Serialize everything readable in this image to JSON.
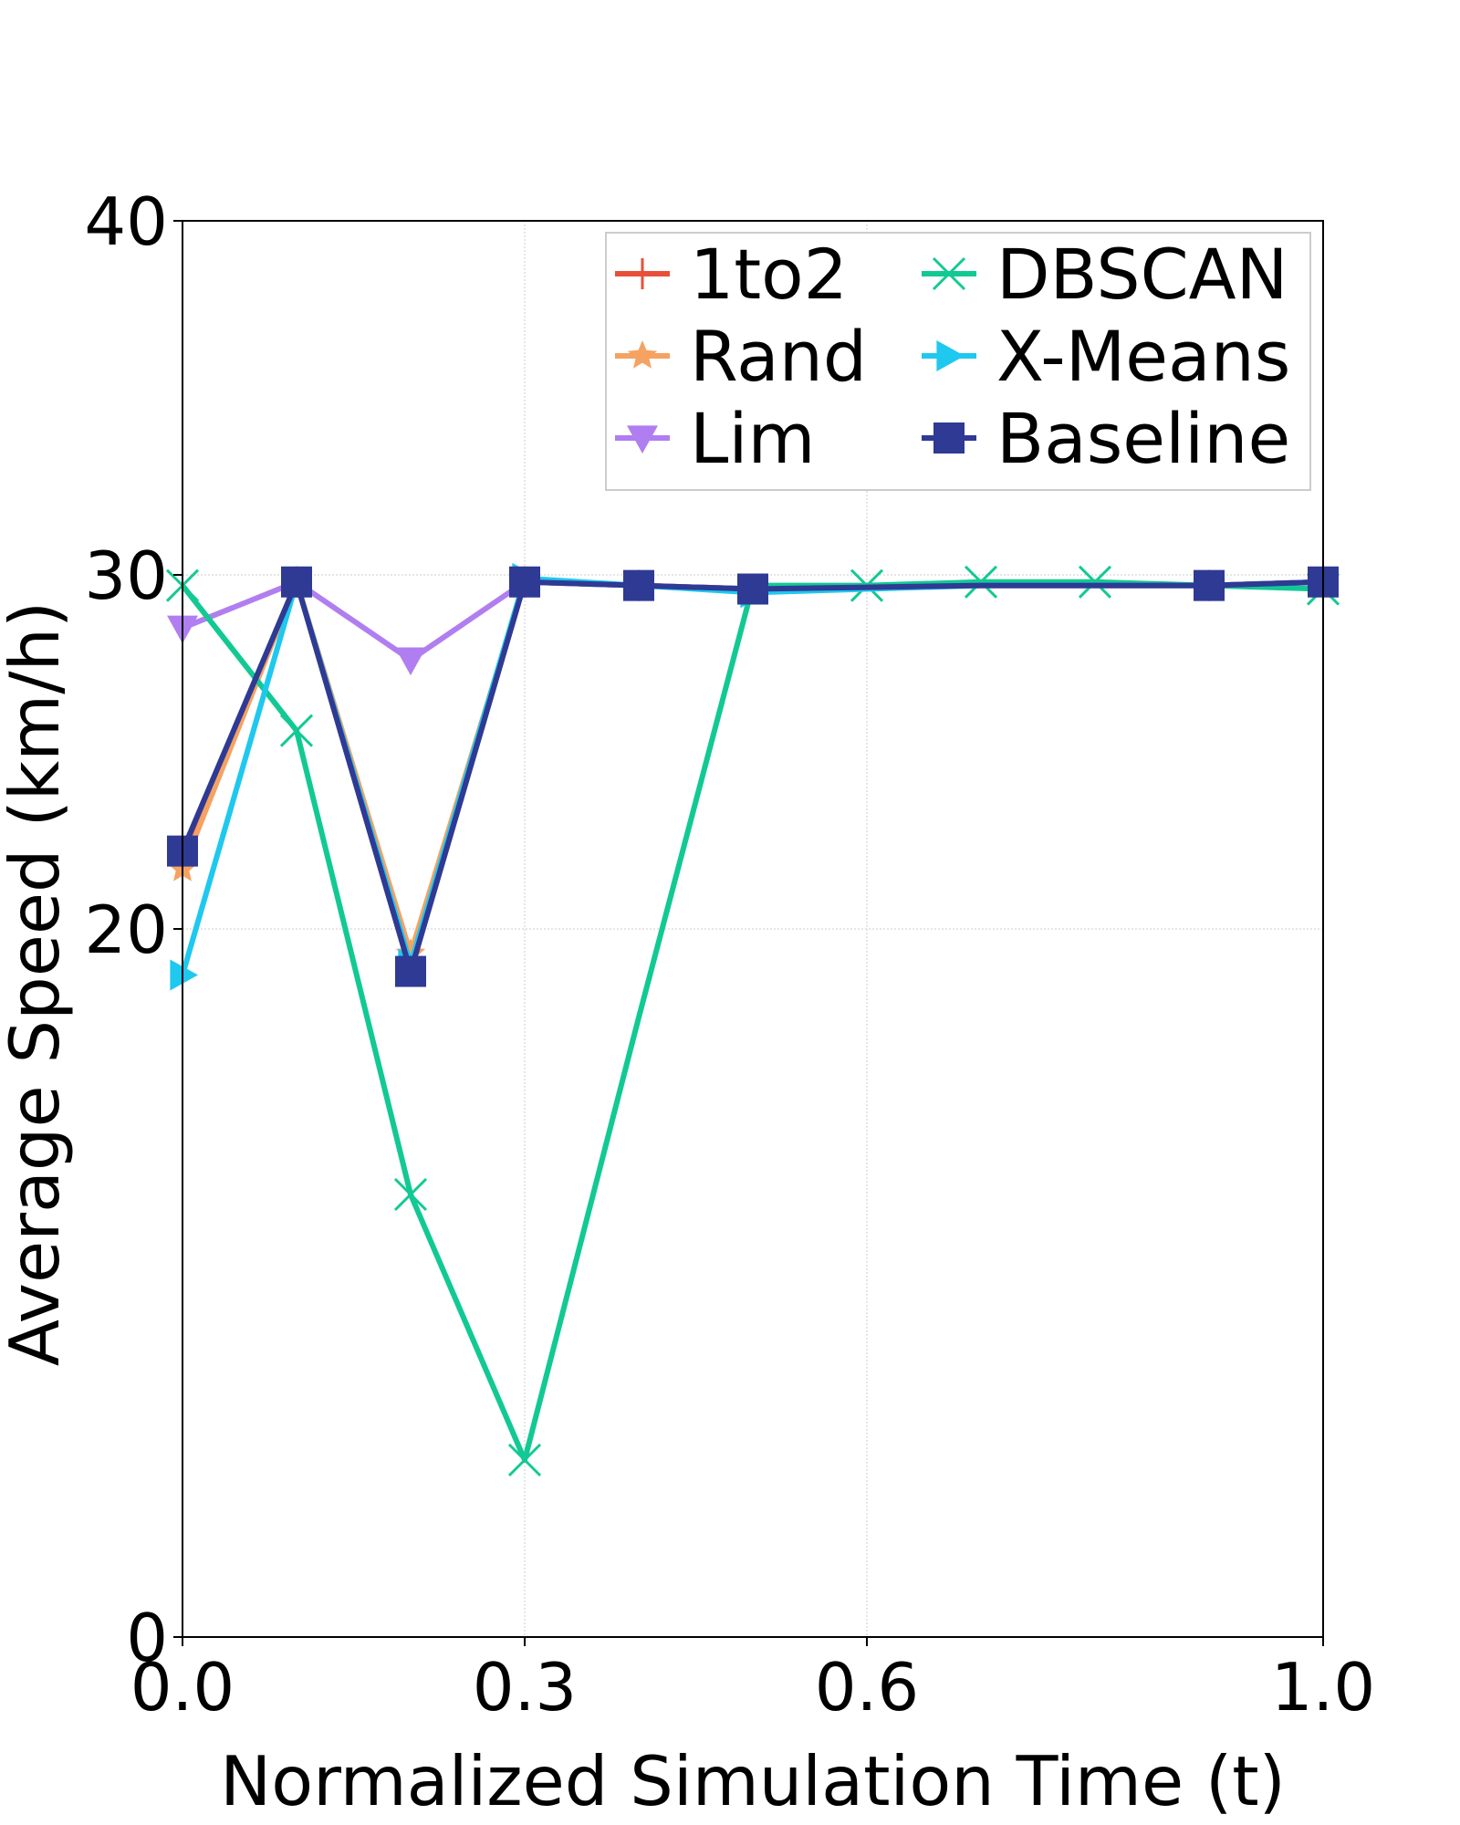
{
  "chart_data": {
    "type": "line",
    "title": "",
    "xlabel": "Normalized Simulation Time (t)",
    "ylabel": "Average Speed (km/h)",
    "xlim": [
      0.0,
      1.0
    ],
    "ylim": [
      0,
      40
    ],
    "x_ticks": [
      0.0,
      0.3,
      0.6,
      1.0
    ],
    "x_tick_labels": [
      "0.0",
      "0.3",
      "0.6",
      "1.0"
    ],
    "y_ticks": [
      0,
      20,
      30,
      40
    ],
    "y_tick_labels": [
      "0",
      "20",
      "30",
      "40"
    ],
    "grid": true,
    "legend_position": "top-right",
    "x": [
      0.0,
      0.1,
      0.2,
      0.3,
      0.4,
      0.5,
      0.6,
      0.7,
      0.8,
      0.9,
      1.0
    ],
    "series": [
      {
        "name": "1to2",
        "color": "#e8503a",
        "marker": "plus",
        "values": [
          22.0,
          29.8,
          19.0,
          29.8,
          29.7,
          29.6,
          29.65,
          29.7,
          29.7,
          29.7,
          29.8
        ]
      },
      {
        "name": "Rand",
        "color": "#f5a262",
        "marker": "star",
        "values": [
          21.7,
          29.8,
          19.3,
          29.8,
          29.7,
          29.6,
          29.65,
          29.7,
          29.7,
          29.7,
          29.8
        ]
      },
      {
        "name": "Lim",
        "color": "#b07ef0",
        "marker": "triangle-down",
        "values": [
          28.5,
          29.8,
          27.6,
          29.8,
          29.7,
          29.6,
          29.65,
          29.7,
          29.7,
          29.7,
          29.8
        ]
      },
      {
        "name": "DBSCAN",
        "color": "#12c994",
        "marker": "x",
        "values": [
          29.7,
          25.6,
          12.5,
          5.0,
          17.5,
          29.7,
          29.7,
          29.8,
          29.8,
          29.7,
          29.6
        ]
      },
      {
        "name": "X-Means",
        "color": "#1fc8ee",
        "marker": "triangle-right",
        "values": [
          18.7,
          29.8,
          19.0,
          29.9,
          29.7,
          29.5,
          29.6,
          29.7,
          29.7,
          29.7,
          29.8
        ]
      },
      {
        "name": "Baseline",
        "color": "#2e3a94",
        "marker": "square",
        "values": [
          22.2,
          29.8,
          18.8,
          29.8,
          29.7,
          29.6,
          29.65,
          29.7,
          29.7,
          29.7,
          29.8
        ]
      }
    ],
    "markers_at": {
      "1to2": [
        0,
        1,
        2,
        3,
        4,
        5,
        9,
        10
      ],
      "Rand": [
        0,
        1,
        2,
        3,
        4,
        5,
        9,
        10
      ],
      "Lim": [
        0,
        1,
        2,
        3,
        4,
        5,
        9,
        10
      ],
      "DBSCAN": [
        0,
        1,
        2,
        3,
        6,
        7,
        8,
        10
      ],
      "X-Means": [
        0,
        1,
        2,
        3,
        4,
        5,
        9,
        10
      ],
      "Baseline": [
        0,
        1,
        2,
        3,
        4,
        5,
        9,
        10
      ]
    }
  }
}
